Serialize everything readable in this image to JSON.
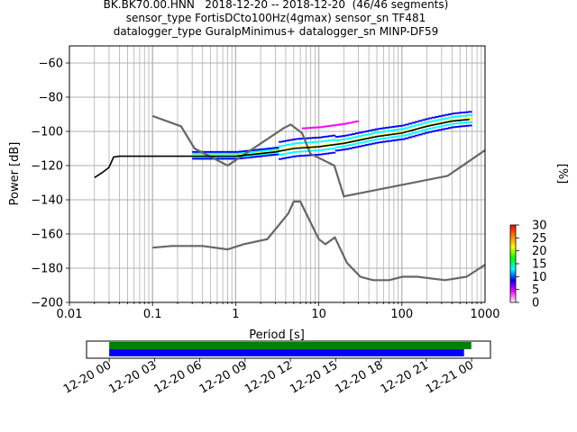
{
  "title_lines": [
    "BK.BK70.00.HNN   2018-12-20 -- 2018-12-20  (46/46 segments)",
    "sensor_type FortisDCto100Hz(4gmax) sensor_sn TF481",
    "datalogger_type GuralpMinimus+ datalogger_sn MINP-DF59"
  ],
  "chart_data": [
    {
      "type": "ppsd",
      "xlabel": "Period [s]",
      "ylabel": "Power [dB]",
      "xscale": "log",
      "xlim": [
        0.01,
        1000
      ],
      "ylim": [
        -200,
        -50
      ],
      "x_ticks": [
        0.01,
        0.1,
        1,
        10,
        100,
        1000
      ],
      "x_tick_labels": [
        "0.01",
        "0.1",
        "1",
        "10",
        "100",
        "1000"
      ],
      "y_ticks": [
        -200,
        -180,
        -160,
        -140,
        -120,
        -100,
        -80,
        -60
      ],
      "y_tick_labels": [
        "−200",
        "−180",
        "−160",
        "−140",
        "−120",
        "−100",
        "−80",
        "−60"
      ],
      "grid": true,
      "noise_models": [
        {
          "name": "NHNM",
          "color": "#666666",
          "points": [
            [
              0.1,
              -91
            ],
            [
              0.22,
              -97
            ],
            [
              0.32,
              -110
            ],
            [
              0.8,
              -120
            ],
            [
              3.8,
              -98
            ],
            [
              4.6,
              -96
            ],
            [
              6.3,
              -101
            ],
            [
              7.9,
              -113
            ],
            [
              15.4,
              -120
            ],
            [
              20,
              -138
            ],
            [
              354.8,
              -126
            ],
            [
              1000,
              -111
            ]
          ]
        },
        {
          "name": "NLNM",
          "color": "#666666",
          "points": [
            [
              0.1,
              -168
            ],
            [
              0.17,
              -167
            ],
            [
              0.4,
              -167
            ],
            [
              0.8,
              -169
            ],
            [
              1.24,
              -166
            ],
            [
              2.4,
              -163
            ],
            [
              4.3,
              -148
            ],
            [
              5,
              -141
            ],
            [
              6,
              -141
            ],
            [
              10,
              -163
            ],
            [
              12,
              -166
            ],
            [
              15.6,
              -162
            ],
            [
              21.9,
              -177
            ],
            [
              31.6,
              -185
            ],
            [
              45,
              -187
            ],
            [
              70,
              -187
            ],
            [
              101,
              -185
            ],
            [
              154,
              -185
            ],
            [
              328,
              -187
            ],
            [
              600,
              -185
            ],
            [
              1000,
              -178
            ]
          ]
        }
      ],
      "mean_curve": {
        "color": "#000000",
        "points": [
          [
            0.02,
            -127
          ],
          [
            0.025,
            -124
          ],
          [
            0.03,
            -121
          ],
          [
            0.034,
            -115
          ],
          [
            0.04,
            -114.5
          ],
          [
            1,
            -114.5
          ],
          [
            3,
            -112
          ],
          [
            5,
            -110
          ],
          [
            10,
            -109
          ],
          [
            20,
            -107
          ],
          [
            50,
            -103
          ],
          [
            100,
            -101
          ],
          [
            200,
            -97
          ],
          [
            400,
            -94
          ],
          [
            650,
            -93
          ]
        ]
      },
      "colorbar": {
        "label": "[%]",
        "ticks": [
          0,
          5,
          10,
          15,
          20,
          25,
          30
        ],
        "range": [
          0,
          30
        ],
        "colormap": "pqlx",
        "colors": [
          "#ffffff",
          "#ff00ff",
          "#0000ff",
          "#00ffff",
          "#00ff00",
          "#ffff00",
          "#ff8000",
          "#ff0000"
        ]
      }
    },
    {
      "type": "timeline",
      "x_tick_labels": [
        "12-20 00",
        "12-20 03",
        "12-20 06",
        "12-20 09",
        "12-20 12",
        "12-20 15",
        "12-20 18",
        "12-20 21",
        "12-21 00"
      ],
      "x_range": [
        "2018-12-19 22:30",
        "2018-12-21 01:15"
      ],
      "bars": [
        {
          "color": "#008000",
          "start": "2018-12-20 00:00",
          "end": "2018-12-20 23:59"
        },
        {
          "color": "#0000ff",
          "start": "2018-12-20 00:00",
          "end": "2018-12-20 23:30"
        }
      ]
    }
  ]
}
